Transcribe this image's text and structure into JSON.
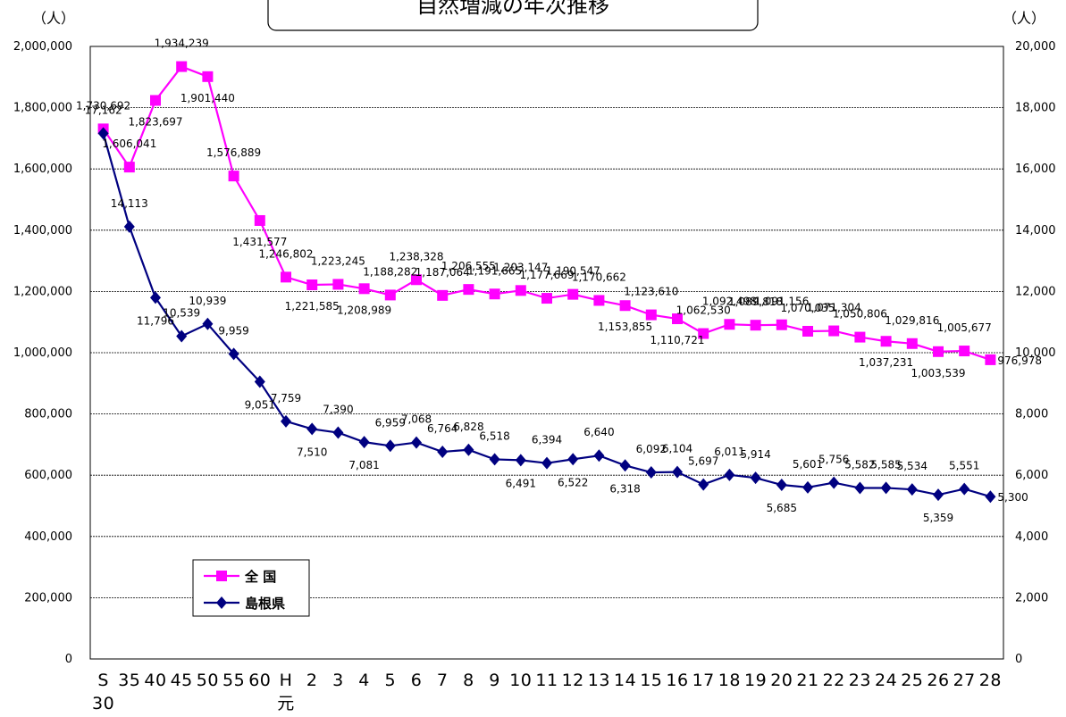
{
  "chart_data": {
    "type": "line",
    "title": "自然増減の年次推移",
    "left_unit": "（人）",
    "right_unit": "（人）",
    "left_axis": {
      "min": 0,
      "max": 2000000,
      "step": 200000,
      "tick_labels": [
        "0",
        "200,000",
        "400,000",
        "600,000",
        "800,000",
        "1,000,000",
        "1,200,000",
        "1,400,000",
        "1,600,000",
        "1,800,000",
        "2,000,000"
      ]
    },
    "right_axis": {
      "min": 0,
      "max": 20000,
      "step": 2000,
      "tick_labels": [
        "0",
        "2,000",
        "4,000",
        "6,000",
        "8,000",
        "10,000",
        "12,000",
        "14,000",
        "16,000",
        "18,000",
        "20,000"
      ]
    },
    "grid": true,
    "legend_position": "bottom-left",
    "categories": [
      "S\n30",
      "35",
      "40",
      "45",
      "50",
      "55",
      "60",
      "H\n元",
      "2",
      "3",
      "4",
      "5",
      "6",
      "7",
      "8",
      "9",
      "10",
      "11",
      "12",
      "13",
      "14",
      "15",
      "16",
      "17",
      "18",
      "19",
      "20",
      "21",
      "22",
      "23",
      "24",
      "25",
      "26",
      "27",
      "28"
    ],
    "series": [
      {
        "name": "全 国",
        "axis": "left",
        "color": "#ff00ff",
        "marker": "square",
        "values": [
          1730692,
          1606041,
          1823697,
          1934239,
          1901440,
          1576889,
          1431577,
          1246802,
          1221585,
          1223245,
          1208989,
          1188282,
          1238328,
          1187064,
          1206555,
          1191665,
          1203147,
          1177669,
          1190547,
          1170662,
          1153855,
          1123610,
          1110721,
          1062530,
          1092498,
          1089818,
          1091156,
          1070035,
          1071304,
          1050806,
          1037231,
          1029816,
          1003539,
          1005677,
          976978
        ],
        "labels": [
          "1,730,692",
          "1,606,041",
          "1,823,697",
          "1,934,239",
          "1,901,440",
          "1,576,889",
          "1,431,577",
          "1,246,802",
          "1,221,585",
          "1,223,245",
          "1,208,989",
          "1,188,282",
          "1,238,328",
          "1,187,064",
          "1,206,555",
          "1,191,665",
          "1,203,147",
          "1,177,669",
          "1,190,547",
          "1,170,662",
          "1,153,855",
          "1,123,610",
          "1,110,721",
          "1,062,530",
          "1,092,498",
          "1,089,818",
          "1,091,156",
          "1,070,035",
          "1,071,304",
          "1,050,806",
          "1,037,231",
          "1,029,816",
          "1,003,539",
          "1,005,677",
          "976,978"
        ]
      },
      {
        "name": "島根県",
        "axis": "right",
        "color": "#000080",
        "marker": "diamond",
        "values": [
          17162,
          14113,
          11796,
          10539,
          10939,
          9959,
          9051,
          7759,
          7510,
          7390,
          7081,
          6959,
          7068,
          6764,
          6828,
          6518,
          6491,
          6394,
          6522,
          6640,
          6318,
          6092,
          6104,
          5697,
          6011,
          5914,
          5685,
          5601,
          5756,
          5582,
          5585,
          5534,
          5359,
          5551,
          5300
        ],
        "labels": [
          "17,162",
          "14,113",
          "11,796",
          "10,539",
          "10,939",
          "9,959",
          "9,051",
          "7,759",
          "7,510",
          "7,390",
          "7,081",
          "6,959",
          "7,068",
          "6,764",
          "6,828",
          "6,518",
          "6,491",
          "6,394",
          "6,522",
          "6,640",
          "6,318",
          "6,092",
          "6,104",
          "5,697",
          "6,011",
          "5,914",
          "5,685",
          "5,601",
          "5,756",
          "5,582",
          "5,585",
          "5,534",
          "5,359",
          "5,551",
          "5,300"
        ]
      }
    ]
  }
}
